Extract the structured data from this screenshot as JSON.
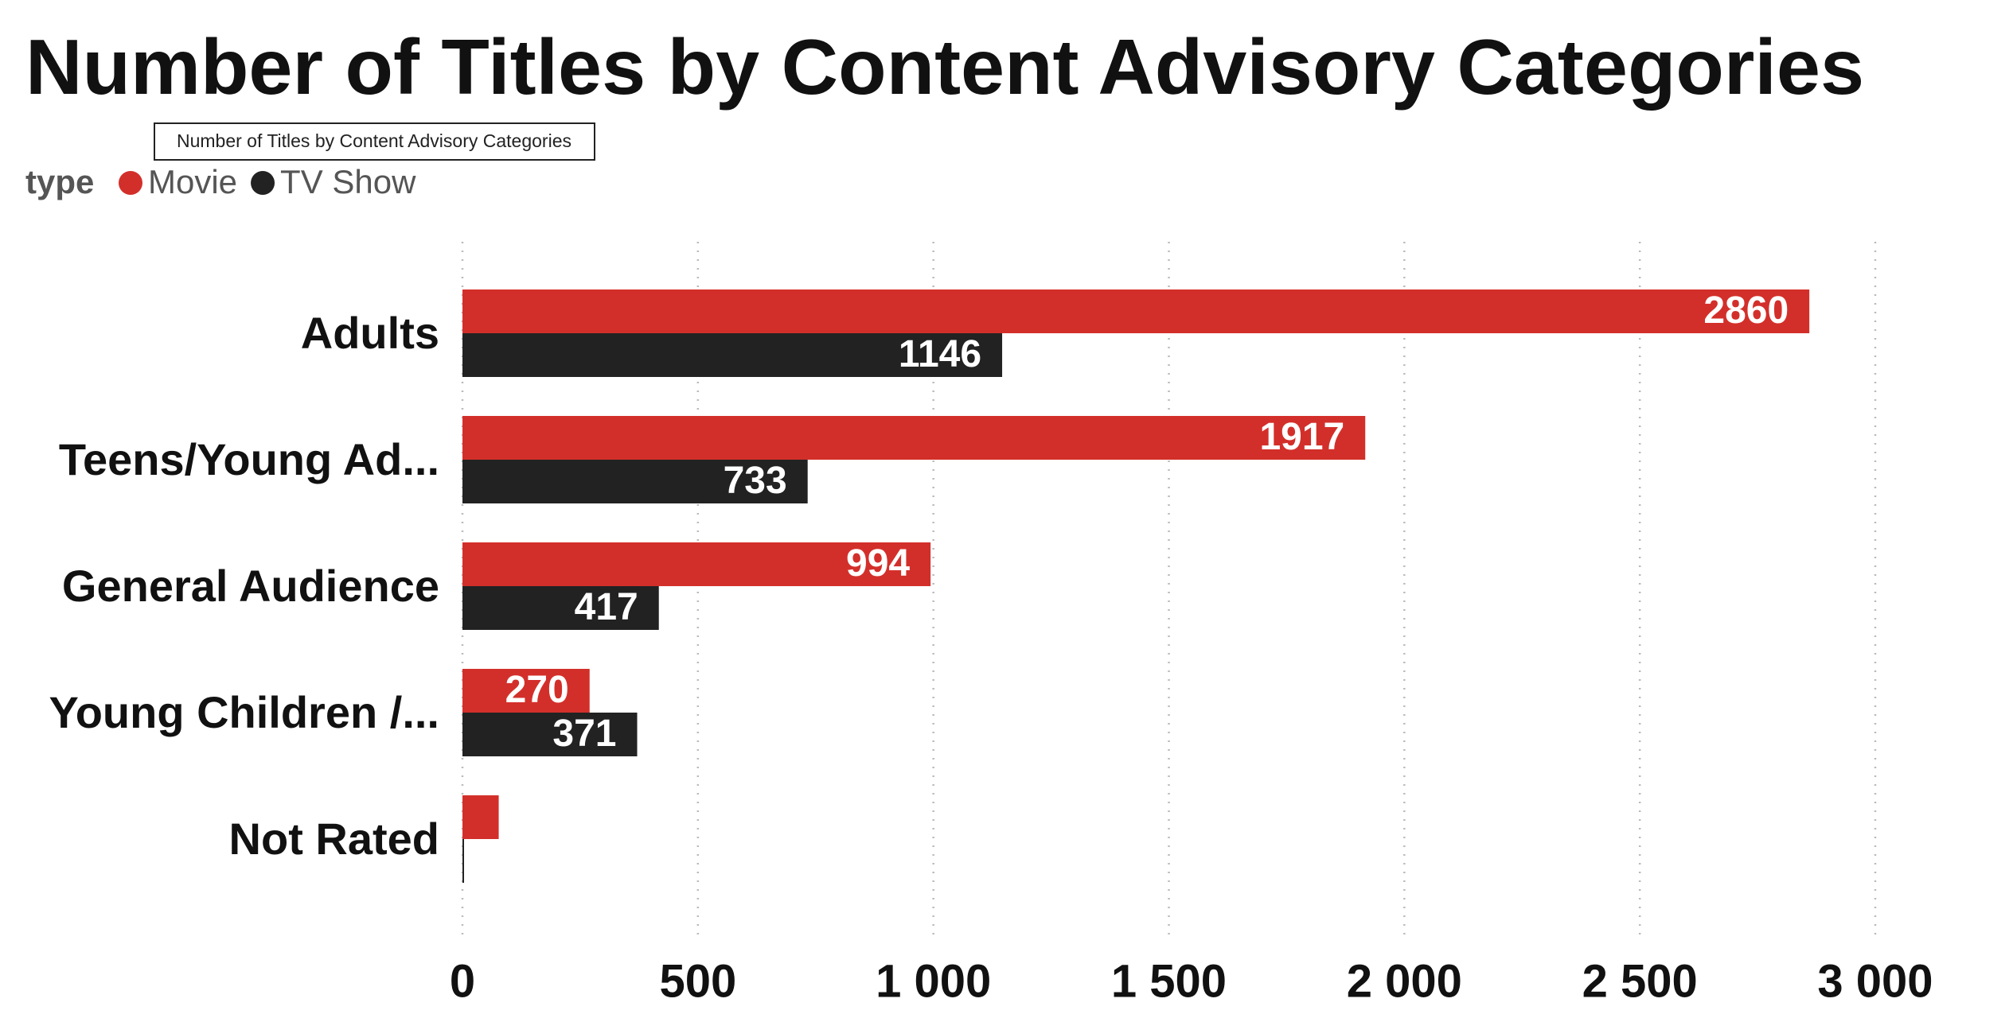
{
  "chart_data": {
    "type": "hbar",
    "title": "Number of Titles by Content Advisory Categories",
    "tooltip": "Number of Titles by Content Advisory Categories",
    "legend_title": "type",
    "categories": [
      "Adults",
      "Teens/Young Ad...",
      "General Audience",
      "Young Children /...",
      "Not Rated"
    ],
    "series": [
      {
        "name": "Movie",
        "color": "#d32f2a",
        "values": [
          2860,
          1917,
          994,
          270,
          77
        ],
        "value_labels": [
          "2860",
          "1917",
          "994",
          "270",
          null
        ]
      },
      {
        "name": "TV Show",
        "color": "#222222",
        "values": [
          1146,
          733,
          417,
          371,
          3
        ],
        "value_labels": [
          "1146",
          "733",
          "417",
          "371",
          null
        ]
      }
    ],
    "xlim": [
      0,
      3000
    ],
    "xticks": [
      0,
      500,
      {
        "value": 1000,
        "label": "1 000"
      },
      {
        "value": 1500,
        "label": "1 500"
      },
      {
        "value": 2000,
        "label": "2 000"
      },
      {
        "value": 2500,
        "label": "2 500"
      },
      {
        "value": 3000,
        "label": "3 000"
      }
    ],
    "grid": true
  }
}
